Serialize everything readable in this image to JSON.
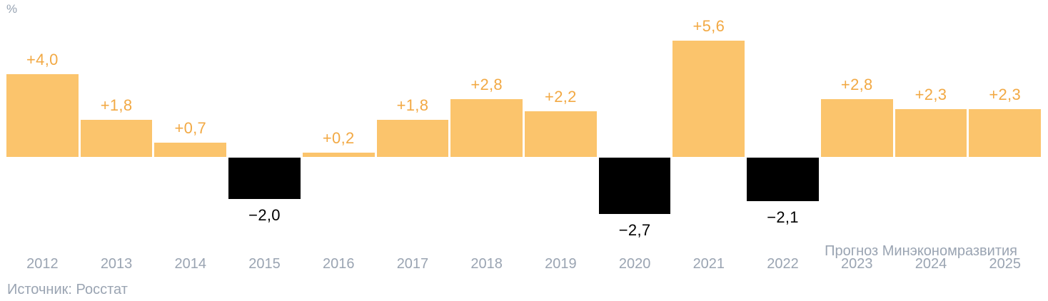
{
  "page": {
    "unit_label": "%",
    "source_note": "Источник: Росстат",
    "forecast_note": "Прогноз Минэкономразвития"
  },
  "chart_data": {
    "type": "bar",
    "title": "",
    "xlabel": "",
    "ylabel": "%",
    "categories": [
      "2012",
      "2013",
      "2014",
      "2015",
      "2016",
      "2017",
      "2018",
      "2019",
      "2020",
      "2021",
      "2022",
      "2023",
      "2024",
      "2025"
    ],
    "values": [
      4.0,
      1.8,
      0.7,
      -2.0,
      0.2,
      1.8,
      2.8,
      2.2,
      -2.7,
      5.6,
      -2.1,
      2.8,
      2.3,
      2.3
    ],
    "labels": [
      "+4,0",
      "+1,8",
      "+0,7",
      "−2,0",
      "+0,2",
      "+1,8",
      "+2,8",
      "+2,2",
      "−2,7",
      "+5,6",
      "−2,1",
      "+2,8",
      "+2,3",
      "+2,3"
    ],
    "forecast_categories": [
      "2023",
      "2024",
      "2025"
    ],
    "forecast_note": "Прогноз Минэкономразвития",
    "source": "Источник: Росстат",
    "ylim": [
      -2.7,
      5.6
    ],
    "grid": false,
    "legend": false,
    "colors": {
      "bar_positive": "#FBC46C",
      "bar_negative": "#000000",
      "label_positive": "#F2A944",
      "label_negative": "#000000",
      "axis_text": "#9AA4B2"
    }
  }
}
